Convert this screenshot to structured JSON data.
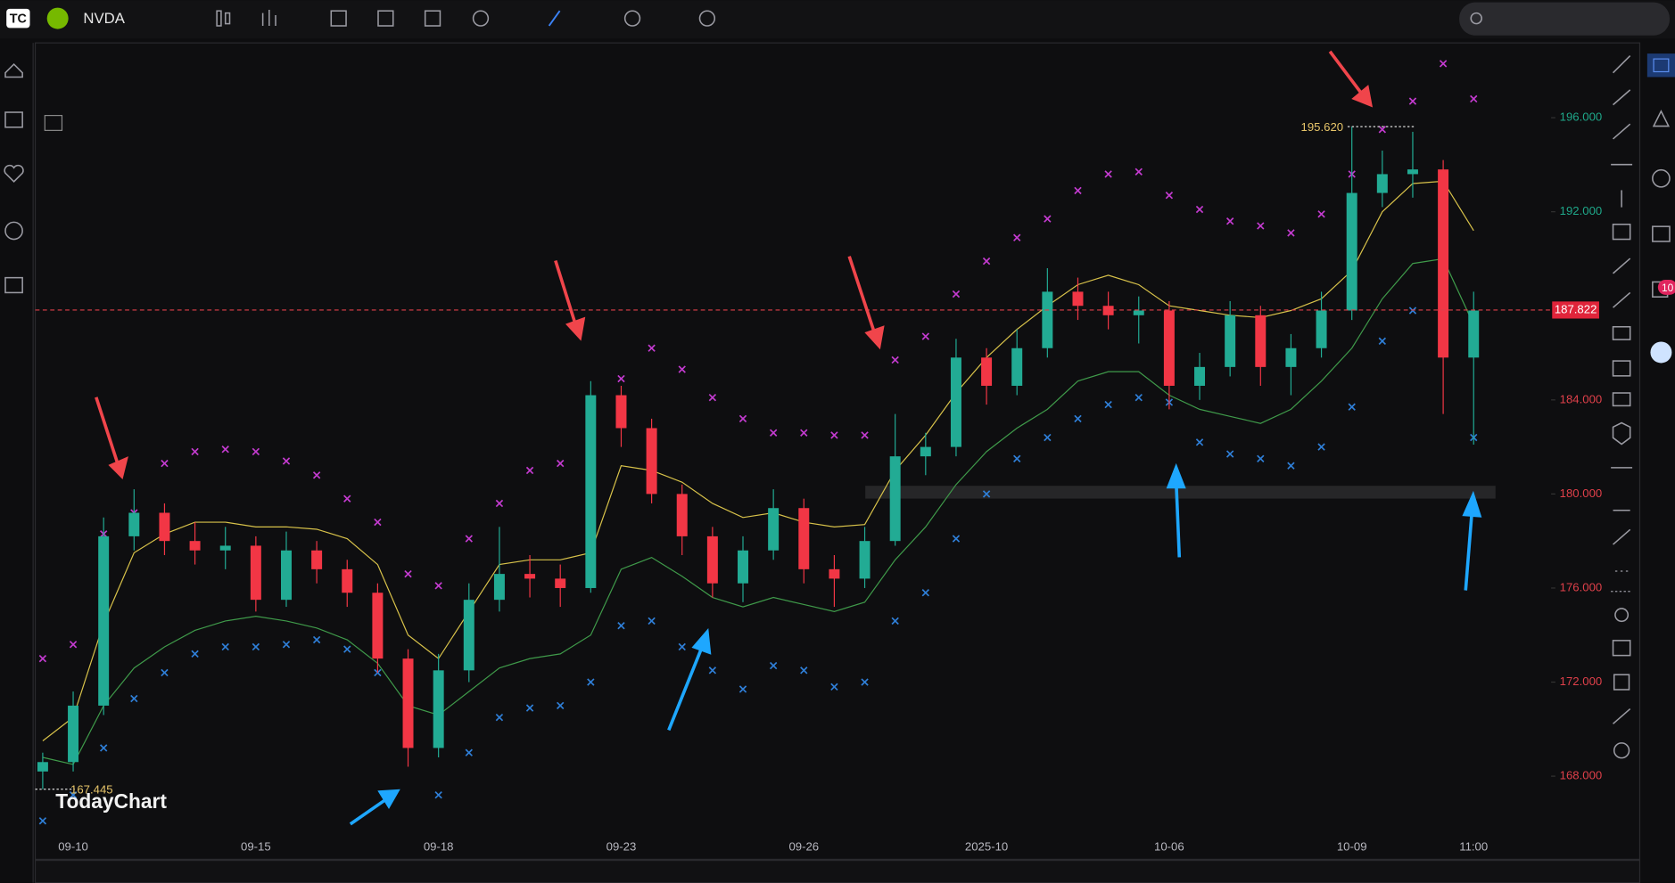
{
  "header": {
    "symbol": "NVDA"
  },
  "watermark": "TodayChart",
  "alert_badge": "10",
  "chart_data": {
    "type": "candlestick",
    "categories": [
      null,
      "09-10",
      null,
      null,
      null,
      null,
      null,
      "09-15",
      null,
      null,
      null,
      null,
      null,
      "09-18",
      null,
      null,
      null,
      null,
      null,
      "09-23",
      null,
      null,
      null,
      null,
      null,
      "09-26",
      null,
      null,
      null,
      null,
      null,
      "2025-10",
      null,
      null,
      null,
      null,
      null,
      "10-06",
      null,
      null,
      null,
      null,
      null,
      "10-09",
      null,
      null,
      null,
      "11:00"
    ],
    "ohlc": [
      [
        168.2,
        169.0,
        167.445,
        168.6
      ],
      [
        168.6,
        171.6,
        168.2,
        171
      ],
      [
        171,
        179.0,
        170.6,
        178.2
      ],
      [
        178.2,
        180.2,
        177.6,
        179.2
      ],
      [
        179.2,
        179.6,
        177.4,
        178
      ],
      [
        178,
        178.8,
        177,
        177.6
      ],
      [
        177.6,
        178.6,
        176.8,
        177.8
      ],
      [
        177.8,
        178.2,
        175,
        175.5
      ],
      [
        175.5,
        178.4,
        175.2,
        177.6
      ],
      [
        177.6,
        178,
        176.2,
        176.8
      ],
      [
        176.8,
        177.2,
        175.2,
        175.8
      ],
      [
        175.8,
        176.2,
        172.4,
        173
      ],
      [
        173,
        173.4,
        168.4,
        169.2
      ],
      [
        169.2,
        173.2,
        168.8,
        172.5
      ],
      [
        172.5,
        176.2,
        172,
        175.5
      ],
      [
        175.5,
        178.6,
        175,
        176.6
      ],
      [
        176.6,
        177.4,
        175.6,
        176.4
      ],
      [
        176.4,
        177,
        175.2,
        176
      ],
      [
        176,
        184.8,
        175.8,
        184.2
      ],
      [
        184.2,
        184.6,
        182,
        182.8
      ],
      [
        182.8,
        183.2,
        179.6,
        180
      ],
      [
        180,
        180.4,
        177.4,
        178.2
      ],
      [
        178.2,
        178.6,
        175.6,
        176.2
      ],
      [
        176.2,
        178.2,
        175.4,
        177.6
      ],
      [
        177.6,
        180.2,
        177.2,
        179.4
      ],
      [
        179.4,
        179.8,
        176.2,
        176.8
      ],
      [
        176.8,
        177.4,
        175.2,
        176.4
      ],
      [
        176.4,
        178.6,
        176,
        178
      ],
      [
        178,
        183.4,
        177.8,
        181.6
      ],
      [
        181.6,
        182.6,
        180.8,
        182
      ],
      [
        182,
        186.6,
        181.6,
        185.8
      ],
      [
        185.8,
        186.2,
        183.8,
        184.6
      ],
      [
        184.6,
        187,
        184.2,
        186.2
      ],
      [
        186.2,
        189.6,
        185.8,
        188.6
      ],
      [
        188.6,
        189.2,
        187.4,
        188
      ],
      [
        188,
        188.6,
        187,
        187.6
      ],
      [
        187.6,
        188.4,
        186.4,
        187.8
      ],
      [
        187.8,
        188.2,
        183.6,
        184.6
      ],
      [
        184.6,
        186,
        184,
        185.4
      ],
      [
        185.4,
        188.2,
        185,
        187.6
      ],
      [
        187.6,
        188,
        184.6,
        185.4
      ],
      [
        185.4,
        186.8,
        184.2,
        186.2
      ],
      [
        186.2,
        188.6,
        185.8,
        187.8
      ],
      [
        187.8,
        195.62,
        187.4,
        192.8
      ],
      [
        192.8,
        194.6,
        192.2,
        193.6
      ],
      [
        193.6,
        195.4,
        192.6,
        193.8
      ],
      [
        193.8,
        194.2,
        183.4,
        185.8
      ],
      [
        185.8,
        188.6,
        182.1,
        187.8
      ]
    ],
    "up_color": "#22ab94",
    "down_color": "#f23645",
    "series": [
      {
        "color": "#c43bd0",
        "marker": "x",
        "values": [
          173,
          173.6,
          178.3,
          179.2,
          181.3,
          181.8,
          181.9,
          181.8,
          181.4,
          180.8,
          179.8,
          178.8,
          176.6,
          176.1,
          178.1,
          179.6,
          181,
          181.3,
          181.3,
          184.9,
          186.2,
          185.3,
          184.1,
          183.2,
          182.6,
          182.6,
          182.5,
          182.5,
          185.7,
          186.7,
          188.5,
          189.9,
          190.9,
          191.7,
          192.9,
          193.6,
          193.7,
          192.7,
          192.1,
          191.6,
          191.4,
          191.1,
          191.9,
          193.6,
          195.5,
          196.7,
          198.3,
          196.8
        ]
      },
      {
        "color": "#2f7fd8",
        "marker": "x",
        "values": [
          166.1,
          167.2,
          169.2,
          171.3,
          172.4,
          173.2,
          173.5,
          173.5,
          173.6,
          173.8,
          173.4,
          172.4,
          169.7,
          167.2,
          169,
          170.5,
          170.9,
          171,
          172,
          174.4,
          174.6,
          173.5,
          172.5,
          171.7,
          172.7,
          172.5,
          171.8,
          172,
          174.6,
          175.8,
          178.1,
          180,
          181.5,
          182.4,
          183.2,
          183.8,
          184.1,
          183.9,
          182.2,
          181.7,
          181.5,
          181.2,
          182,
          183.7,
          186.5,
          187.8,
          186.2,
          182.4
        ]
      },
      {
        "color": "#d8c24a",
        "marker": "line",
        "values": [
          169.5,
          170.5,
          174.5,
          177.5,
          178.3,
          178.8,
          178.8,
          178.6,
          178.6,
          178.5,
          178.1,
          177,
          174,
          173,
          175,
          177,
          177.2,
          177.2,
          177.5,
          181.2,
          181,
          180.5,
          179.6,
          179,
          179.2,
          178.8,
          178.6,
          178.7,
          181,
          182.5,
          184.3,
          185.8,
          187,
          188,
          188.9,
          189.3,
          188.9,
          188,
          187.8,
          187.6,
          187.5,
          187.8,
          188.3,
          189.5,
          192,
          193.2,
          193.3,
          191.2
        ]
      },
      {
        "color": "#3f9a4a",
        "marker": "line",
        "values": [
          168.8,
          168.5,
          171,
          172.6,
          173.5,
          174.2,
          174.6,
          174.8,
          174.6,
          174.3,
          173.8,
          172.8,
          171,
          170.6,
          171.6,
          172.6,
          173,
          173.2,
          174,
          176.8,
          177.3,
          176.5,
          175.6,
          175.2,
          175.6,
          175.3,
          175,
          175.4,
          177.2,
          178.6,
          180.4,
          181.8,
          182.8,
          183.6,
          184.8,
          185.2,
          185.2,
          184.2,
          183.6,
          183.3,
          183,
          183.6,
          184.8,
          186.2,
          188.3,
          189.8,
          190,
          187.2
        ]
      }
    ],
    "ylim": [
      165.6,
      199.18
    ],
    "yticks": [
      {
        "value": 168,
        "label": "168.000"
      },
      {
        "value": 172,
        "label": "172.000"
      },
      {
        "value": 176,
        "label": "176.000"
      },
      {
        "value": 180,
        "label": "180.000"
      },
      {
        "value": 184,
        "label": "184.000"
      },
      {
        "value": 192,
        "label": "192.000"
      },
      {
        "value": 196,
        "label": "196.000"
      }
    ],
    "last_price": 187.822,
    "high_label": {
      "value": 195.62,
      "label": "195.620"
    },
    "low_label": 167.445,
    "grid": false
  }
}
